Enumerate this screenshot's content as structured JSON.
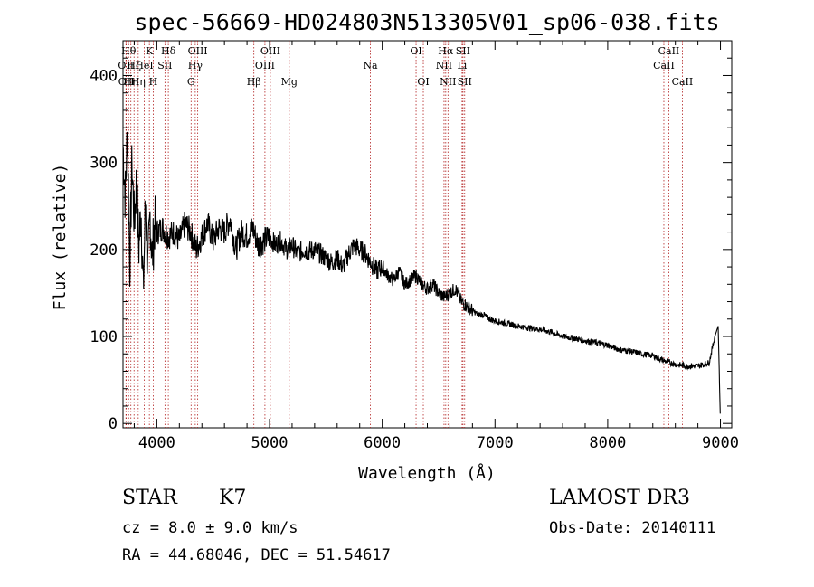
{
  "header": {
    "title": "spec-56669-HD024803N513305V01_sp06-038.fits"
  },
  "footer": {
    "object_class": "STAR",
    "subclass": "K7",
    "survey": "LAMOST DR3",
    "cz": "cz = 8.0 ± 9.0 km/s",
    "obs_date": "Obs-Date: 20140111",
    "coords": "RA =  44.68046, DEC =  51.54617"
  },
  "chart_data": {
    "type": "line",
    "title": "spec-56669-HD024803N513305V01_sp06-038.fits",
    "xlabel": "Wavelength (Å)",
    "ylabel": "Flux (relative)",
    "xlim": [
      3700,
      9100
    ],
    "ylim": [
      -5,
      440
    ],
    "xticks": [
      4000,
      5000,
      6000,
      7000,
      8000,
      9000
    ],
    "yticks": [
      0,
      100,
      200,
      300,
      400
    ],
    "line_color": "#000000",
    "marker_color": "#b22222",
    "spectrum": {
      "x": [
        3700,
        3720,
        3740,
        3760,
        3780,
        3800,
        3820,
        3840,
        3860,
        3880,
        3900,
        3920,
        3940,
        3960,
        3980,
        4000,
        4050,
        4100,
        4150,
        4200,
        4250,
        4300,
        4350,
        4400,
        4450,
        4500,
        4550,
        4600,
        4650,
        4700,
        4750,
        4800,
        4850,
        4900,
        4950,
        5000,
        5050,
        5100,
        5150,
        5200,
        5250,
        5300,
        5350,
        5400,
        5450,
        5500,
        5550,
        5600,
        5650,
        5700,
        5750,
        5800,
        5850,
        5900,
        5950,
        6000,
        6050,
        6100,
        6150,
        6200,
        6250,
        6300,
        6350,
        6400,
        6450,
        6500,
        6550,
        6600,
        6650,
        6700,
        6750,
        6800,
        6850,
        6900,
        6950,
        7000,
        7100,
        7200,
        7300,
        7400,
        7500,
        7600,
        7700,
        7800,
        7900,
        8000,
        8100,
        8200,
        8300,
        8400,
        8500,
        8600,
        8700,
        8800,
        8850,
        8900,
        8950,
        8980,
        9000
      ],
      "y": [
        320,
        260,
        340,
        180,
        300,
        230,
        280,
        200,
        250,
        150,
        260,
        170,
        240,
        190,
        230,
        220,
        225,
        215,
        220,
        210,
        230,
        220,
        200,
        215,
        230,
        210,
        225,
        220,
        235,
        200,
        220,
        215,
        225,
        205,
        210,
        215,
        205,
        210,
        200,
        205,
        195,
        200,
        198,
        200,
        195,
        190,
        185,
        190,
        180,
        195,
        205,
        200,
        195,
        185,
        175,
        180,
        170,
        165,
        175,
        160,
        165,
        170,
        160,
        155,
        160,
        150,
        145,
        150,
        155,
        140,
        135,
        130,
        125,
        125,
        120,
        118,
        115,
        112,
        110,
        108,
        105,
        100,
        98,
        95,
        93,
        90,
        85,
        83,
        80,
        78,
        72,
        68,
        66,
        66,
        68,
        70,
        100,
        112,
        0
      ]
    },
    "lines": [
      {
        "x": 3726,
        "label": "OII",
        "row": 1
      },
      {
        "x": 3729,
        "label": "OII",
        "row": 2
      },
      {
        "x": 3750,
        "label": "Hθ",
        "row": 0
      },
      {
        "x": 3770,
        "label": "Hη",
        "row": 2
      },
      {
        "x": 3798,
        "label": "Hζ",
        "row": 1
      },
      {
        "x": 3835,
        "label": "Hη",
        "row": 2
      },
      {
        "x": 3889,
        "label": "HeI",
        "row": 1
      },
      {
        "x": 3934,
        "label": "K",
        "row": 0
      },
      {
        "x": 3968,
        "label": "H",
        "row": 2
      },
      {
        "x": 4072,
        "label": "SII",
        "row": 1
      },
      {
        "x": 4102,
        "label": "Hδ",
        "row": 0
      },
      {
        "x": 4304,
        "label": "G",
        "row": 2
      },
      {
        "x": 4341,
        "label": "Hγ",
        "row": 1
      },
      {
        "x": 4363,
        "label": "OIII",
        "row": 0
      },
      {
        "x": 4861,
        "label": "Hβ",
        "row": 2
      },
      {
        "x": 4959,
        "label": "OIII",
        "row": 1
      },
      {
        "x": 5007,
        "label": "OIII",
        "row": 0
      },
      {
        "x": 5175,
        "label": "Mg",
        "row": 2
      },
      {
        "x": 5894,
        "label": "Na",
        "row": 1
      },
      {
        "x": 6300,
        "label": "OI",
        "row": 0
      },
      {
        "x": 6364,
        "label": "OI",
        "row": 2
      },
      {
        "x": 6548,
        "label": "NII",
        "row": 1
      },
      {
        "x": 6563,
        "label": "Hα",
        "row": 0
      },
      {
        "x": 6583,
        "label": "NII",
        "row": 2
      },
      {
        "x": 6708,
        "label": "Li",
        "row": 1
      },
      {
        "x": 6716,
        "label": "SII",
        "row": 0
      },
      {
        "x": 6731,
        "label": "SII",
        "row": 2
      },
      {
        "x": 8498,
        "label": "CaII",
        "row": 1
      },
      {
        "x": 8542,
        "label": "CaII",
        "row": 0
      },
      {
        "x": 8662,
        "label": "CaII",
        "row": 2
      }
    ]
  }
}
